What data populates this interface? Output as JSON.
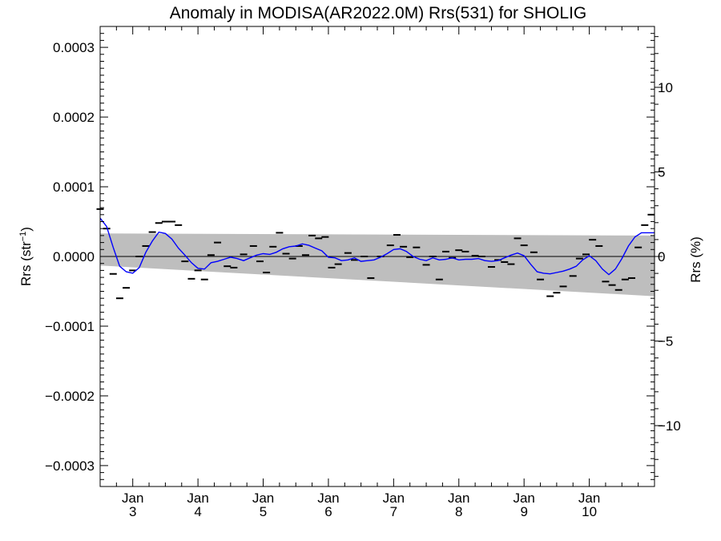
{
  "chart_data": {
    "type": "line",
    "title": "Anomaly in MODISA(AR2022.0M) Rrs(531) for SHOLIG",
    "ylabel_left": {
      "base": "Rrs (str",
      "sup": "−1",
      "close": ")"
    },
    "ylabel_right": "Rrs (%)",
    "xlim": [
      2.5,
      11.0
    ],
    "ylim": [
      -0.00033,
      0.00033
    ],
    "ylim_right": [
      -13.6,
      13.6
    ],
    "grid": false,
    "legend": "none",
    "x_ticks": [
      {
        "top": "Jan",
        "bottom": "3",
        "x": 3
      },
      {
        "top": "Jan",
        "bottom": "4",
        "x": 4
      },
      {
        "top": "Jan",
        "bottom": "5",
        "x": 5
      },
      {
        "top": "Jan",
        "bottom": "6",
        "x": 6
      },
      {
        "top": "Jan",
        "bottom": "7",
        "x": 7
      },
      {
        "top": "Jan",
        "bottom": "8",
        "x": 8
      },
      {
        "top": "Jan",
        "bottom": "9",
        "x": 9
      },
      {
        "top": "Jan",
        "bottom": "10",
        "x": 10
      }
    ],
    "y_ticks": [
      {
        "value": 0.0003,
        "label": "0.0003"
      },
      {
        "value": 0.0002,
        "label": "0.0002"
      },
      {
        "value": 0.0001,
        "label": "0.0001"
      },
      {
        "value": 0.0,
        "label": "0.0000"
      },
      {
        "value": -0.0001,
        "label": "−0.0001"
      },
      {
        "value": -0.0002,
        "label": "−0.0002"
      },
      {
        "value": -0.0003,
        "label": "−0.0003"
      }
    ],
    "y_ticks_right": [
      {
        "value": 10,
        "label": "10"
      },
      {
        "value": 5,
        "label": "5"
      },
      {
        "value": 0,
        "label": "0"
      },
      {
        "value": -5,
        "label": "−5"
      },
      {
        "value": -10,
        "label": "−10"
      }
    ],
    "band": {
      "x": [
        2.5,
        11.0
      ],
      "upper": [
        3.3e-05,
        3e-05
      ],
      "lower": [
        -1.3e-05,
        -5.7e-05
      ]
    },
    "colors": {
      "band": "#bebebe",
      "smooth": "#0000ff",
      "points": "#000000",
      "zero": "#000000"
    },
    "points": {
      "x": [
        2.5,
        2.6,
        2.7,
        2.8,
        2.9,
        3.0,
        3.1,
        3.2,
        3.3,
        3.4,
        3.5,
        3.6,
        3.7,
        3.8,
        3.9,
        4.0,
        4.1,
        4.2,
        4.3,
        4.45,
        4.55,
        4.7,
        4.85,
        4.95,
        5.05,
        5.15,
        5.25,
        5.35,
        5.45,
        5.55,
        5.65,
        5.75,
        5.85,
        5.95,
        6.05,
        6.15,
        6.3,
        6.4,
        6.55,
        6.65,
        6.8,
        6.95,
        7.05,
        7.15,
        7.25,
        7.35,
        7.5,
        7.6,
        7.7,
        7.8,
        7.9,
        8.0,
        8.1,
        8.25,
        8.35,
        8.5,
        8.6,
        8.7,
        8.8,
        8.9,
        9.0,
        9.15,
        9.25,
        9.4,
        9.5,
        9.6,
        9.75,
        9.85,
        9.95,
        10.05,
        10.15,
        10.25,
        10.35,
        10.45,
        10.55,
        10.65,
        10.75,
        10.85,
        10.95
      ],
      "y": [
        6.8e-05,
        4e-05,
        -2.5e-05,
        -6e-05,
        -4.5e-05,
        -2e-05,
        0.0,
        1.5e-05,
        3.5e-05,
        4.8e-05,
        5e-05,
        5e-05,
        4.5e-05,
        -7e-06,
        -3.2e-05,
        -2e-05,
        -3.3e-05,
        2e-06,
        2e-05,
        -1.4e-05,
        -1.6e-05,
        3e-06,
        1.5e-05,
        -7e-06,
        -2.3e-05,
        1.4e-05,
        3.4e-05,
        4e-06,
        -3e-06,
        1.5e-05,
        2e-06,
        3e-05,
        2.6e-05,
        2.8e-05,
        -1.6e-05,
        -1.1e-05,
        5e-06,
        -5e-06,
        0.0,
        -3.1e-05,
        0.0,
        1.6e-05,
        3.1e-05,
        1.4e-05,
        -1e-06,
        1.3e-05,
        -1.2e-05,
        -0.0,
        -3.3e-05,
        7e-06,
        -2e-06,
        9e-06,
        7e-06,
        1e-06,
        0.0,
        -1.5e-05,
        -5e-06,
        -8e-06,
        -1.1e-05,
        2.6e-05,
        1.6e-05,
        6e-06,
        -3.3e-05,
        -5.7e-05,
        -5.2e-05,
        -4.3e-05,
        -2.8e-05,
        -3e-06,
        3e-06,
        2.4e-05,
        1.5e-05,
        -3.6e-05,
        -4.1e-05,
        -4.8e-05,
        -3.3e-05,
        -3.1e-05,
        1.3e-05,
        4.5e-05,
        6e-05
      ]
    },
    "smooth": {
      "x": [
        2.5,
        2.6,
        2.7,
        2.8,
        2.9,
        3.0,
        3.1,
        3.2,
        3.3,
        3.4,
        3.5,
        3.6,
        3.7,
        3.8,
        3.9,
        4.0,
        4.1,
        4.2,
        4.3,
        4.4,
        4.5,
        4.6,
        4.7,
        4.8,
        4.9,
        5.0,
        5.1,
        5.2,
        5.3,
        5.4,
        5.5,
        5.6,
        5.7,
        5.8,
        5.9,
        6.0,
        6.1,
        6.2,
        6.3,
        6.4,
        6.5,
        6.6,
        6.7,
        6.8,
        6.9,
        7.0,
        7.1,
        7.2,
        7.3,
        7.4,
        7.5,
        7.6,
        7.7,
        7.8,
        7.9,
        8.0,
        8.1,
        8.2,
        8.3,
        8.4,
        8.5,
        8.6,
        8.7,
        8.8,
        8.9,
        9.0,
        9.1,
        9.2,
        9.3,
        9.4,
        9.5,
        9.6,
        9.7,
        9.8,
        9.9,
        10.0,
        10.1,
        10.2,
        10.3,
        10.4,
        10.5,
        10.6,
        10.7,
        10.8,
        10.9,
        11.0
      ],
      "y": [
        5.5e-05,
        4.3e-05,
        1.3e-05,
        -1.4e-05,
        -2.2e-05,
        -2.4e-05,
        -1.6e-05,
        6e-06,
        2.2e-05,
        3.5e-05,
        3.3e-05,
        2.5e-05,
        1.2e-05,
        2e-06,
        -9e-06,
        -1.7e-05,
        -1.8e-05,
        -9e-06,
        -7e-06,
        -4e-06,
        -1e-06,
        -3e-06,
        -6e-06,
        -2e-06,
        2e-06,
        4e-06,
        3e-06,
        6e-06,
        1.1e-05,
        1.4e-05,
        1.5e-05,
        1.8e-05,
        1.6e-05,
        1.2e-05,
        8e-06,
        -1e-06,
        -2e-06,
        -6e-06,
        -5e-06,
        -2e-06,
        -7e-06,
        -6e-06,
        -5e-06,
        -1e-06,
        4e-06,
        1e-05,
        1.1e-05,
        7e-06,
        0.0,
        -4e-06,
        -6e-06,
        -2e-06,
        -5e-06,
        -4e-06,
        -2e-06,
        -5e-06,
        -4e-06,
        -4e-06,
        -3e-06,
        -6e-06,
        -7e-06,
        -6e-06,
        -2e-06,
        2e-06,
        5e-06,
        1e-06,
        -1.1e-05,
        -2.2e-05,
        -2.4e-05,
        -2.5e-05,
        -2.3e-05,
        -2.1e-05,
        -1.8e-05,
        -1.4e-05,
        -5e-06,
        1e-06,
        -6e-06,
        -1.8e-05,
        -2.6e-05,
        -1.8e-05,
        -3e-06,
        1.5e-05,
        2.8e-05,
        3.4e-05,
        3.4e-05,
        3.4e-05
      ]
    }
  }
}
